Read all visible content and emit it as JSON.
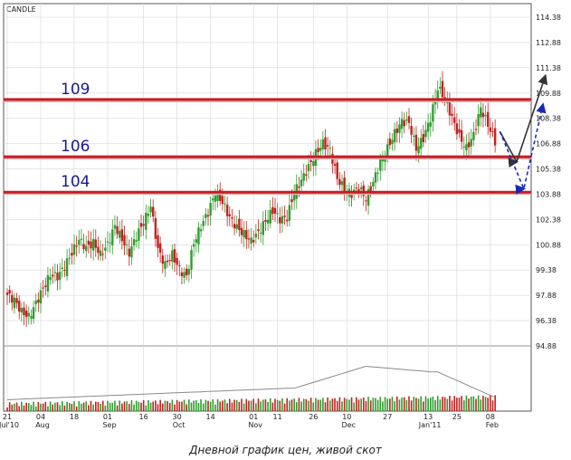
{
  "caption": "Дневной график цен,  живой скот",
  "chart_data": {
    "type": "candlestick",
    "chart_type_label": "CANDLE",
    "y_ticks": [
      "114.38",
      "112.88",
      "111.38",
      "109.88",
      "108.38",
      "106.88",
      "105.38",
      "103.88",
      "102.38",
      "100.88",
      "99.38",
      "97.88",
      "96.38",
      "94.88"
    ],
    "ylim": [
      94.88,
      114.38
    ],
    "x_ticks": [
      {
        "label": "21",
        "sub": "Jul'10",
        "day": 0
      },
      {
        "label": "04",
        "sub": "Aug",
        "day": 14
      },
      {
        "label": "18",
        "sub": "",
        "day": 28
      },
      {
        "label": "01",
        "sub": "Sep",
        "day": 42
      },
      {
        "label": "16",
        "sub": "",
        "day": 57
      },
      {
        "label": "30",
        "sub": "Oct",
        "day": 71
      },
      {
        "label": "14",
        "sub": "",
        "day": 85
      },
      {
        "label": "01",
        "sub": "Nov",
        "day": 103
      },
      {
        "label": "11",
        "sub": "",
        "day": 113
      },
      {
        "label": "26",
        "sub": "",
        "day": 128
      },
      {
        "label": "10",
        "sub": "Dec",
        "day": 142
      },
      {
        "label": "27",
        "sub": "",
        "day": 159
      },
      {
        "label": "13",
        "sub": "Jan'11",
        "day": 176
      },
      {
        "label": "25",
        "sub": "",
        "day": 188
      },
      {
        "label": "08",
        "sub": "Feb",
        "day": 202
      }
    ],
    "levels": [
      {
        "label": "109",
        "value": 109.5
      },
      {
        "label": "106",
        "value": 106.1
      },
      {
        "label": "104",
        "value": 104.0
      }
    ],
    "closes": [
      {
        "day": 0,
        "close": 97.9
      },
      {
        "day": 3,
        "close": 97.6
      },
      {
        "day": 6,
        "close": 96.9
      },
      {
        "day": 9,
        "close": 96.6
      },
      {
        "day": 12,
        "close": 97.4
      },
      {
        "day": 15,
        "close": 98.3
      },
      {
        "day": 18,
        "close": 99.1
      },
      {
        "day": 21,
        "close": 99.0
      },
      {
        "day": 24,
        "close": 99.6
      },
      {
        "day": 27,
        "close": 100.4
      },
      {
        "day": 30,
        "close": 101.2
      },
      {
        "day": 33,
        "close": 100.7
      },
      {
        "day": 36,
        "close": 101.0
      },
      {
        "day": 39,
        "close": 100.3
      },
      {
        "day": 42,
        "close": 100.9
      },
      {
        "day": 45,
        "close": 102.0
      },
      {
        "day": 48,
        "close": 101.2
      },
      {
        "day": 51,
        "close": 100.4
      },
      {
        "day": 54,
        "close": 101.4
      },
      {
        "day": 57,
        "close": 102.2
      },
      {
        "day": 60,
        "close": 103.2
      },
      {
        "day": 63,
        "close": 100.6
      },
      {
        "day": 66,
        "close": 99.7
      },
      {
        "day": 69,
        "close": 100.3
      },
      {
        "day": 72,
        "close": 99.4
      },
      {
        "day": 75,
        "close": 99.0
      },
      {
        "day": 78,
        "close": 101.0
      },
      {
        "day": 81,
        "close": 102.0
      },
      {
        "day": 84,
        "close": 102.8
      },
      {
        "day": 87,
        "close": 104.0
      },
      {
        "day": 90,
        "close": 103.4
      },
      {
        "day": 93,
        "close": 102.5
      },
      {
        "day": 96,
        "close": 101.9
      },
      {
        "day": 99,
        "close": 101.5
      },
      {
        "day": 102,
        "close": 101.1
      },
      {
        "day": 105,
        "close": 101.6
      },
      {
        "day": 108,
        "close": 102.3
      },
      {
        "day": 111,
        "close": 102.9
      },
      {
        "day": 114,
        "close": 102.4
      },
      {
        "day": 117,
        "close": 102.5
      },
      {
        "day": 120,
        "close": 104.0
      },
      {
        "day": 123,
        "close": 104.7
      },
      {
        "day": 126,
        "close": 105.5
      },
      {
        "day": 129,
        "close": 106.3
      },
      {
        "day": 132,
        "close": 106.9
      },
      {
        "day": 135,
        "close": 106.5
      },
      {
        "day": 138,
        "close": 104.8
      },
      {
        "day": 141,
        "close": 104.2
      },
      {
        "day": 144,
        "close": 103.9
      },
      {
        "day": 147,
        "close": 104.3
      },
      {
        "day": 150,
        "close": 103.6
      },
      {
        "day": 153,
        "close": 104.6
      },
      {
        "day": 156,
        "close": 105.8
      },
      {
        "day": 159,
        "close": 106.6
      },
      {
        "day": 162,
        "close": 107.5
      },
      {
        "day": 165,
        "close": 108.2
      },
      {
        "day": 168,
        "close": 108.1
      },
      {
        "day": 171,
        "close": 106.6
      },
      {
        "day": 174,
        "close": 107.2
      },
      {
        "day": 177,
        "close": 108.4
      },
      {
        "day": 180,
        "close": 110.2
      },
      {
        "day": 183,
        "close": 109.6
      },
      {
        "day": 186,
        "close": 108.4
      },
      {
        "day": 189,
        "close": 107.3
      },
      {
        "day": 192,
        "close": 106.6
      },
      {
        "day": 195,
        "close": 107.4
      },
      {
        "day": 198,
        "close": 109.0
      },
      {
        "day": 201,
        "close": 108.0
      },
      {
        "day": 204,
        "close": 107.0
      }
    ],
    "projections": [
      {
        "style": "solid",
        "color": "#333333",
        "from": {
          "day": 206,
          "value": 107.6
        },
        "via": {
          "day": 213,
          "value": 105.8
        },
        "to": {
          "day": 225,
          "value": 110.9
        }
      },
      {
        "style": "dashed",
        "color": "#1a2ab0",
        "from": {
          "day": 206,
          "value": 107.6
        },
        "via": {
          "day": 216,
          "value": 104.2
        },
        "to": {
          "day": 224,
          "value": 109.2
        }
      }
    ]
  },
  "colors": {
    "level_line": "#c41e24",
    "bull": "#2e9e2e",
    "bear": "#c42020",
    "grid": "#d6d6d6",
    "volume_line": "#8a8a8a"
  }
}
